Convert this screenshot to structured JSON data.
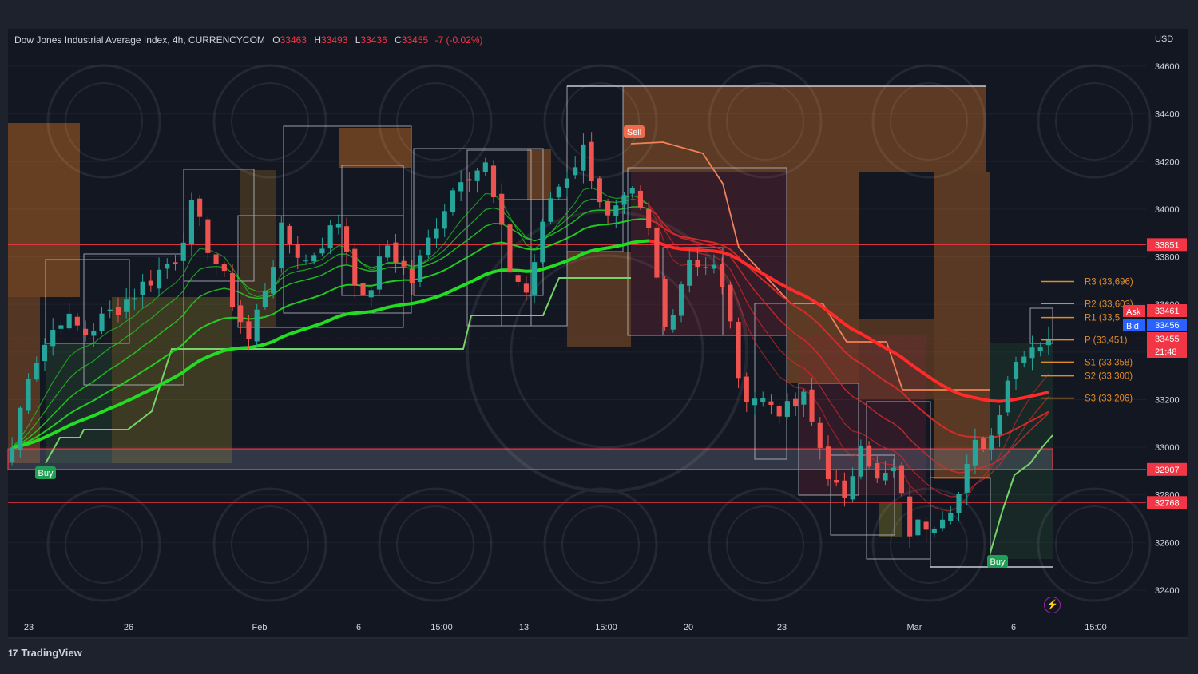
{
  "header": {
    "symbol": "Dow Jones Industrial Average Index, 4h, CURRENCYCOM",
    "open_key": "O",
    "open": "33463",
    "high_key": "H",
    "high": "33493",
    "low_key": "L",
    "low": "33436",
    "close_key": "C",
    "close": "33455",
    "change": "-7 (-0.02%)",
    "currency": "USD"
  },
  "brand": {
    "logo": "17",
    "name": "TradingView"
  },
  "signals": {
    "buy_label": "Buy",
    "sell_label": "Sell"
  },
  "price_tags": {
    "resistance": "33851",
    "ask_label": "Ask",
    "ask": "33461",
    "bid_label": "Bid",
    "bid": "33456",
    "last": "33455",
    "countdown": "21:48",
    "support_1": "32907",
    "support_2": "32768"
  },
  "pivots": [
    {
      "label": "R3 (33,696)",
      "value": 33696
    },
    {
      "label": "R2 (33,603)",
      "value": 33603
    },
    {
      "label": "R1 (33,5",
      "value": 33545
    },
    {
      "label": "P (33,451)",
      "value": 33451
    },
    {
      "label": "S1 (33,358)",
      "value": 33358
    },
    {
      "label": "S2 (33,300)",
      "value": 33300
    },
    {
      "label": "S3 (33,206)",
      "value": 33206
    }
  ],
  "colors": {
    "background": "#131722",
    "bull": "#26a69a",
    "bear": "#ef5350",
    "ema_green": "#22dd22",
    "ema_red": "#ff2a2a",
    "supertrend_up": "#76d36a",
    "supertrend_down": "#f0825a",
    "pivot": "#e08a2a",
    "horizontal_line": "#f23645",
    "bid": "#2962ff"
  },
  "chart_data": {
    "type": "candlestick",
    "title": "Dow Jones Industrial Average Index, 4h, CURRENCYCOM",
    "timeframe": "4h",
    "ylabel": "USD",
    "ylim": [
      32300,
      34700
    ],
    "y_ticks": [
      34600,
      34400,
      34200,
      34000,
      33800,
      33600,
      33400,
      33200,
      33000,
      32800,
      32600,
      32400
    ],
    "x_ticks": [
      "23",
      "26",
      "Feb",
      "6",
      "15:00",
      "13",
      "15:00",
      "20",
      "23",
      "Mar",
      "6",
      "15:00"
    ],
    "bars_total": 128,
    "key_prices": [
      {
        "bar": 0,
        "price": 33000
      },
      {
        "bar": 2,
        "price": 33320
      },
      {
        "bar": 6,
        "price": 33550
      },
      {
        "bar": 9,
        "price": 33480
      },
      {
        "bar": 14,
        "price": 33620
      },
      {
        "bar": 20,
        "price": 33800
      },
      {
        "bar": 22,
        "price": 34000
      },
      {
        "bar": 26,
        "price": 33700
      },
      {
        "bar": 29,
        "price": 33450
      },
      {
        "bar": 33,
        "price": 33900
      },
      {
        "bar": 36,
        "price": 33780
      },
      {
        "bar": 40,
        "price": 33950
      },
      {
        "bar": 43,
        "price": 33600
      },
      {
        "bar": 46,
        "price": 33850
      },
      {
        "bar": 49,
        "price": 33700
      },
      {
        "bar": 52,
        "price": 33950
      },
      {
        "bar": 55,
        "price": 34150
      },
      {
        "bar": 58,
        "price": 34180
      },
      {
        "bar": 61,
        "price": 33750
      },
      {
        "bar": 63,
        "price": 33650
      },
      {
        "bar": 66,
        "price": 34050
      },
      {
        "bar": 70,
        "price": 34250
      },
      {
        "bar": 73,
        "price": 33950
      },
      {
        "bar": 76,
        "price": 34050
      },
      {
        "bar": 78,
        "price": 33900
      },
      {
        "bar": 80,
        "price": 33500
      },
      {
        "bar": 83,
        "price": 33800
      },
      {
        "bar": 86,
        "price": 33750
      },
      {
        "bar": 88,
        "price": 33550
      },
      {
        "bar": 89,
        "price": 33250
      },
      {
        "bar": 92,
        "price": 33200
      },
      {
        "bar": 95,
        "price": 33150
      },
      {
        "bar": 97,
        "price": 33200
      },
      {
        "bar": 100,
        "price": 32900
      },
      {
        "bar": 102,
        "price": 32750
      },
      {
        "bar": 104,
        "price": 33050
      },
      {
        "bar": 106,
        "price": 32850
      },
      {
        "bar": 108,
        "price": 32900
      },
      {
        "bar": 110,
        "price": 32650
      },
      {
        "bar": 113,
        "price": 32700
      },
      {
        "bar": 116,
        "price": 32800
      },
      {
        "bar": 118,
        "price": 33000
      },
      {
        "bar": 120,
        "price": 33050
      },
      {
        "bar": 122,
        "price": 33300
      },
      {
        "bar": 124,
        "price": 33420
      },
      {
        "bar": 127,
        "price": 33455
      }
    ],
    "horizontal_lines": [
      33851,
      32907,
      32768
    ],
    "demand_zone": [
      32907,
      33000
    ],
    "signals": [
      {
        "type": "Buy",
        "bar": 4,
        "price": 32920
      },
      {
        "type": "Sell",
        "bar": 77,
        "price": 34290
      },
      {
        "type": "Buy",
        "bar": 121,
        "price": 32550
      }
    ],
    "last_price": 33455
  }
}
